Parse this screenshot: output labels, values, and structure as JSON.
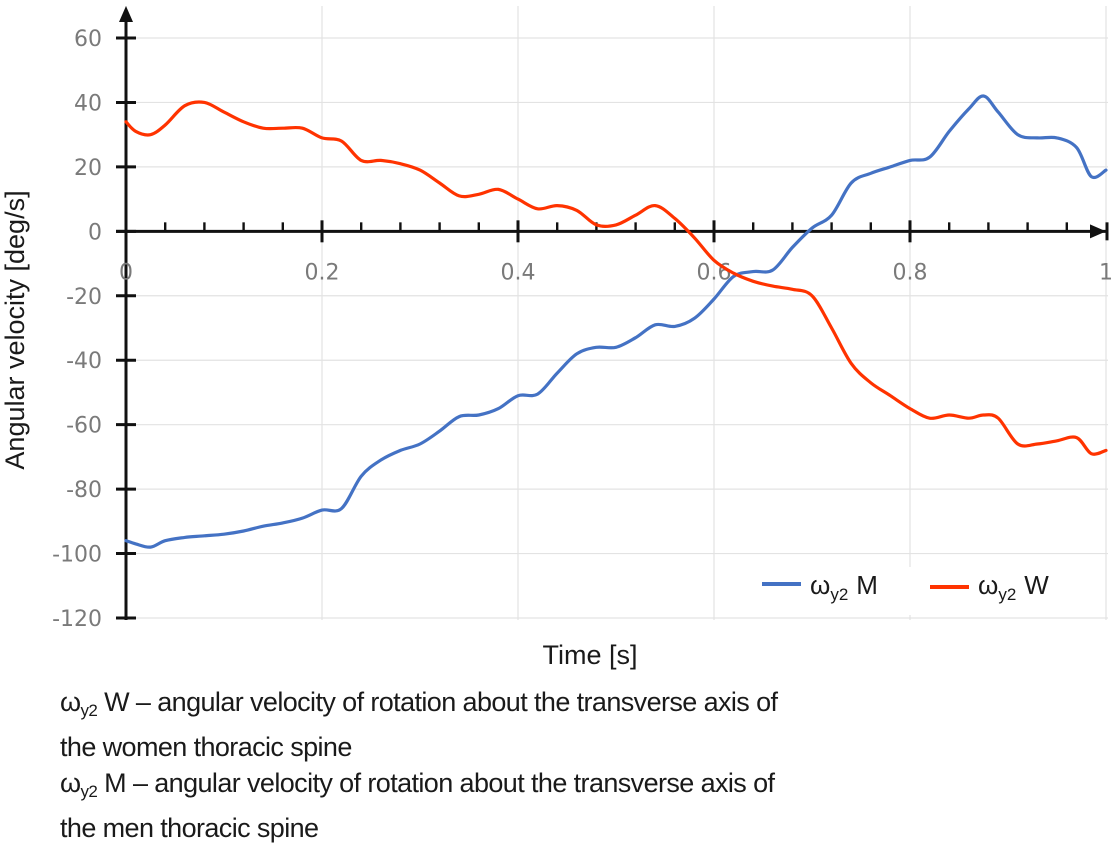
{
  "chart_data": {
    "type": "line",
    "title": "",
    "xlabel": "Time [s]",
    "ylabel": "Angular velocity [deg/s]",
    "xlim": [
      0,
      1
    ],
    "ylim": [
      -120,
      60
    ],
    "x_ticks": [
      0,
      0.2,
      0.4,
      0.6,
      0.8,
      1
    ],
    "x_tick_labels": [
      "0",
      "0.2",
      "0.4",
      "0.6",
      "0.8",
      "1"
    ],
    "x_minor_tick_step": 0.04,
    "y_ticks": [
      60,
      40,
      20,
      0,
      -20,
      -40,
      -60,
      -80,
      -100,
      -120
    ],
    "y_tick_labels": [
      "60",
      "40",
      "20",
      "0",
      "-20",
      "-40",
      "-60",
      "-80",
      "-100",
      "-120"
    ],
    "grid": true,
    "legend_position": "bottom-right",
    "series": [
      {
        "name": "ωy2 M",
        "legend_symbol": "ω",
        "legend_sub": "y2",
        "legend_suffix": "M",
        "color": "#4472c4",
        "x": [
          0,
          0.01,
          0.025,
          0.04,
          0.06,
          0.08,
          0.1,
          0.12,
          0.14,
          0.16,
          0.18,
          0.2,
          0.22,
          0.24,
          0.26,
          0.28,
          0.3,
          0.32,
          0.34,
          0.36,
          0.38,
          0.4,
          0.42,
          0.44,
          0.46,
          0.48,
          0.5,
          0.52,
          0.54,
          0.56,
          0.58,
          0.6,
          0.62,
          0.64,
          0.66,
          0.68,
          0.7,
          0.72,
          0.74,
          0.76,
          0.78,
          0.8,
          0.82,
          0.84,
          0.86,
          0.875,
          0.89,
          0.91,
          0.93,
          0.95,
          0.97,
          0.985,
          1.0
        ],
        "y": [
          -96,
          -97,
          -98,
          -96,
          -95,
          -94.5,
          -94,
          -93,
          -91.5,
          -90.5,
          -89,
          -86.5,
          -86,
          -76,
          -71,
          -68,
          -66,
          -62,
          -57.5,
          -57,
          -55,
          -51,
          -50.5,
          -44,
          -38,
          -36,
          -36,
          -33,
          -29,
          -29.5,
          -27,
          -21,
          -14,
          -12.5,
          -12,
          -5,
          1,
          5,
          15,
          18,
          20,
          22,
          23,
          31,
          38,
          42,
          37,
          30,
          29,
          29,
          26,
          17,
          19
        ]
      },
      {
        "name": "ωy2 W",
        "legend_symbol": "ω",
        "legend_sub": "y2",
        "legend_suffix": "W",
        "color": "#ff3300",
        "x": [
          0,
          0.01,
          0.025,
          0.04,
          0.06,
          0.08,
          0.1,
          0.12,
          0.14,
          0.16,
          0.18,
          0.2,
          0.22,
          0.24,
          0.26,
          0.28,
          0.3,
          0.32,
          0.34,
          0.36,
          0.38,
          0.4,
          0.42,
          0.44,
          0.46,
          0.48,
          0.5,
          0.52,
          0.54,
          0.56,
          0.58,
          0.6,
          0.62,
          0.64,
          0.66,
          0.68,
          0.7,
          0.72,
          0.74,
          0.76,
          0.78,
          0.8,
          0.82,
          0.84,
          0.86,
          0.875,
          0.89,
          0.91,
          0.93,
          0.95,
          0.97,
          0.985,
          1.0
        ],
        "y": [
          34,
          31,
          30,
          33,
          39,
          40,
          37,
          34,
          32,
          32,
          32,
          29,
          28,
          22,
          22,
          21,
          19,
          15,
          11,
          11.5,
          13,
          10,
          7,
          8,
          6.5,
          2,
          2,
          5,
          8,
          4,
          -2,
          -9,
          -13,
          -15.5,
          -17,
          -18,
          -20,
          -30,
          -41,
          -47,
          -51,
          -55,
          -58,
          -57,
          -58,
          -57,
          -58,
          -66,
          -66,
          -65,
          -64,
          -69,
          -68
        ]
      }
    ]
  },
  "caption": {
    "lines": [
      {
        "symbol": "ω",
        "sub": "y2",
        "text": " W – angular velocity of rotation about the transverse axis of"
      },
      {
        "symbol": "",
        "sub": "",
        "text": "the women thoracic spine"
      },
      {
        "symbol": "ω",
        "sub": "y2",
        "text": " M – angular velocity of rotation about the transverse axis of"
      },
      {
        "symbol": "",
        "sub": "",
        "text": "the men thoracic spine"
      }
    ]
  }
}
